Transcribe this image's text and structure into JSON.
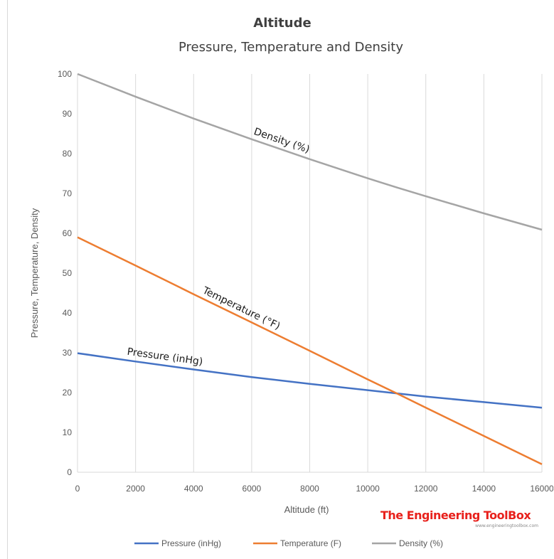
{
  "chart_data": {
    "type": "line",
    "title": "Altitude",
    "subtitle": "Pressure, Temperature and Density",
    "xlabel": "Altitude  (ft)",
    "ylabel": "Pressure, Temperature, Density",
    "xlim": [
      0,
      16000
    ],
    "ylim": [
      0,
      100
    ],
    "x_ticks": [
      "0",
      "2000",
      "4000",
      "6000",
      "8000",
      "10000",
      "12000",
      "14000",
      "16000"
    ],
    "y_ticks": [
      "0",
      "10",
      "20",
      "30",
      "40",
      "50",
      "60",
      "70",
      "80",
      "90",
      "100"
    ],
    "grid": "vertical",
    "legend_position": "bottom",
    "x": [
      0,
      2000,
      4000,
      6000,
      8000,
      10000,
      11000,
      12000,
      14000,
      16000
    ],
    "series": [
      {
        "name": "Pressure (inHg)",
        "color": "#4472c4",
        "values": [
          29.9,
          27.8,
          25.8,
          23.9,
          22.2,
          20.6,
          19.8,
          19.0,
          17.6,
          16.2
        ]
      },
      {
        "name": "Temperature (F)",
        "color": "#ed7d31",
        "values": [
          59.0,
          51.9,
          44.7,
          37.6,
          30.5,
          23.3,
          19.8,
          16.2,
          9.1,
          2.0
        ]
      },
      {
        "name": "Density (%)",
        "color": "#a5a5a5",
        "values": [
          100,
          94.3,
          88.8,
          83.6,
          78.6,
          73.8,
          71.5,
          69.3,
          65.0,
          60.9
        ]
      }
    ],
    "annotations": [
      {
        "text": "Density (%)",
        "series": 2,
        "x": 7000
      },
      {
        "text": "Temperature (°F)",
        "series": 1,
        "x": 5600
      },
      {
        "text": "Pressure (inHg)",
        "series": 0,
        "x": 3000
      }
    ]
  },
  "branding": {
    "name": "The Engineering ToolBox",
    "url": "www.engineeringtoolbox.com"
  }
}
